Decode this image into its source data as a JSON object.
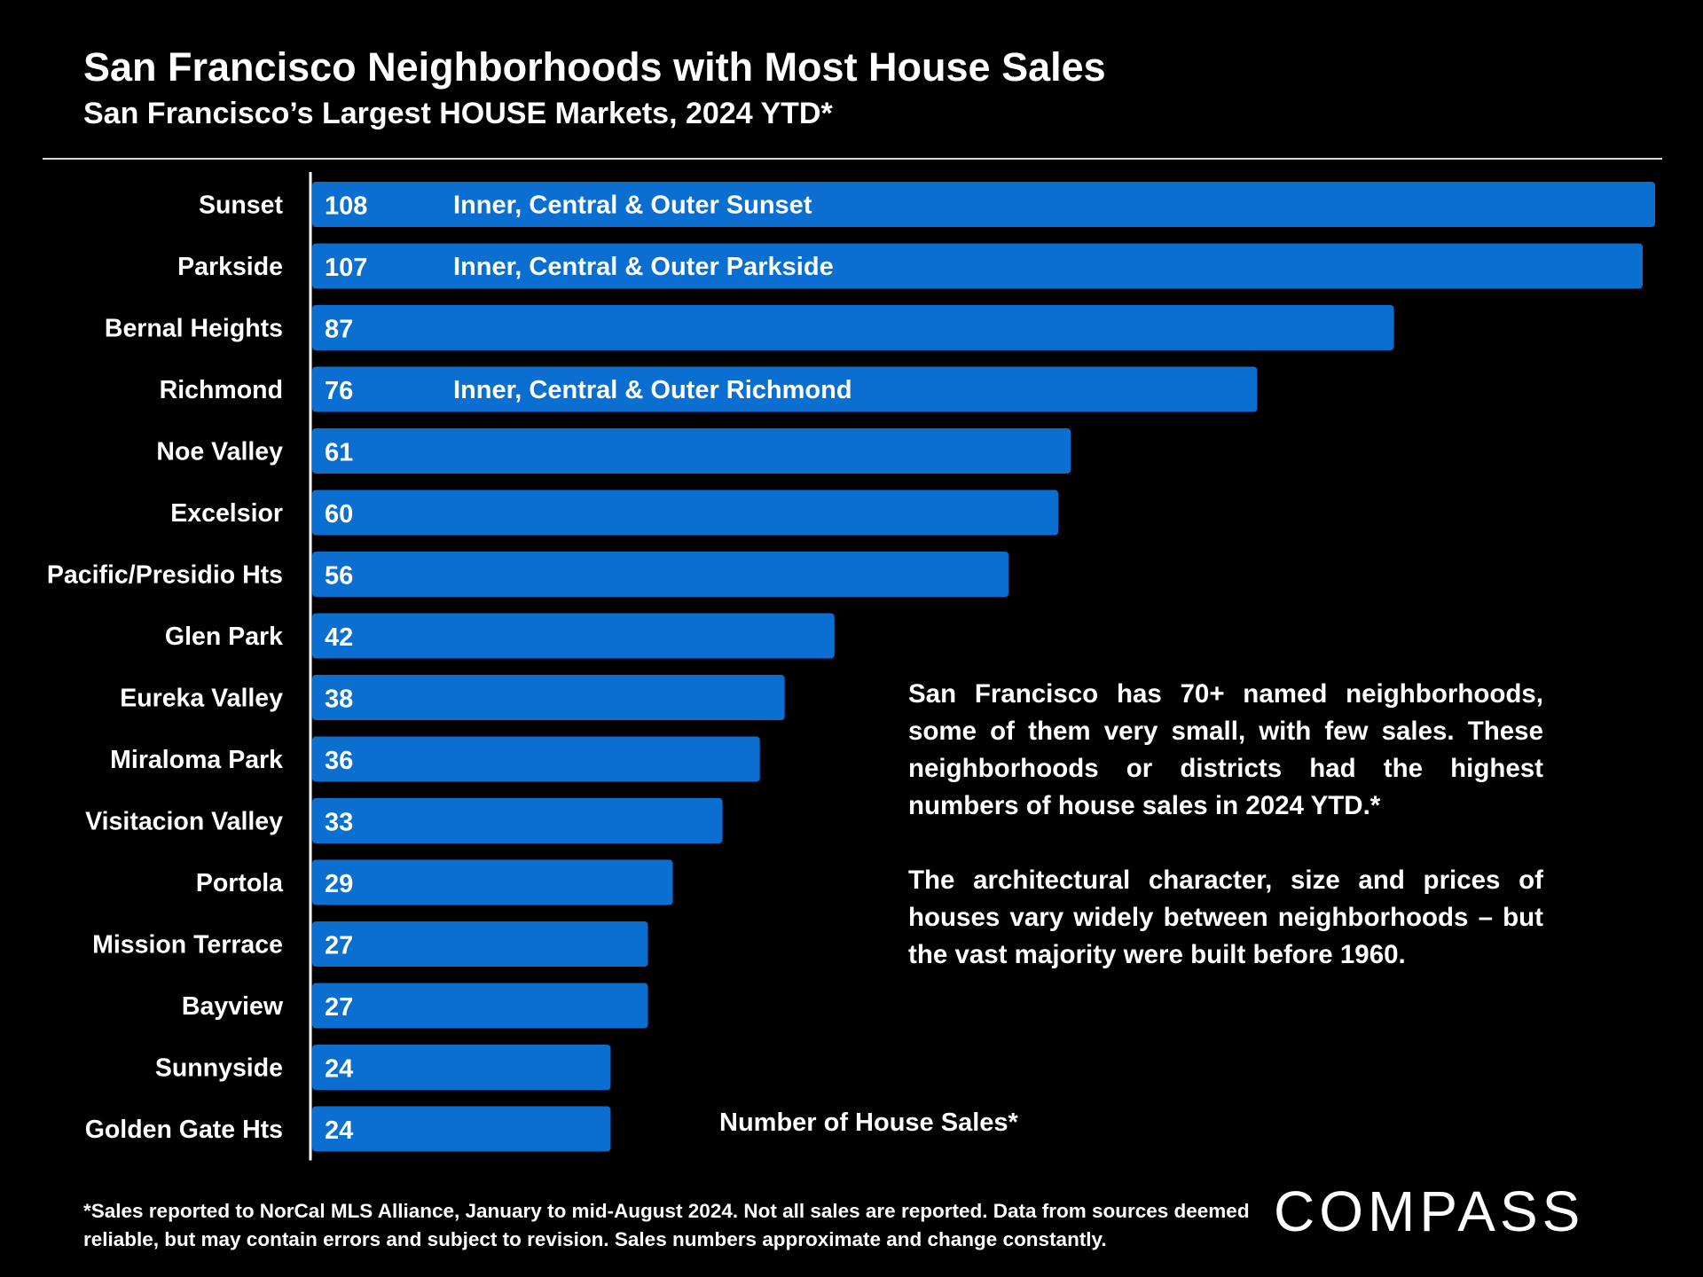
{
  "header": {
    "title": "San Francisco Neighborhoods with Most House Sales",
    "subtitle": "San Francisco’s Largest HOUSE Markets, 2024 YTD*"
  },
  "chart_data": {
    "type": "bar",
    "orientation": "horizontal",
    "categories": [
      "Sunset",
      "Parkside",
      "Bernal Heights",
      "Richmond",
      "Noe Valley",
      "Excelsior",
      "Pacific/Presidio Hts",
      "Glen Park",
      "Eureka Valley",
      "Miraloma Park",
      "Visitacion Valley",
      "Portola",
      "Mission Terrace",
      "Bayview",
      "Sunnyside",
      "Golden Gate Hts"
    ],
    "values": [
      108,
      107,
      87,
      76,
      61,
      60,
      56,
      42,
      38,
      36,
      33,
      29,
      27,
      27,
      24,
      24
    ],
    "bar_notes": [
      "Inner, Central & Outer Sunset",
      "Inner, Central & Outer Parkside",
      "",
      "Inner, Central & Outer Richmond",
      "",
      "",
      "",
      "",
      "",
      "",
      "",
      "",
      "",
      "",
      "",
      ""
    ],
    "xlabel": "Number of House Sales*",
    "ylabel": "",
    "xlim": [
      0,
      108
    ],
    "grid": false,
    "bar_color": "#0a6fd0",
    "data_labels": true
  },
  "annotation": {
    "paragraph1": "San Francisco has 70+ named neighborhoods, some of them very small, with few sales. These neighborhoods or districts had the highest numbers of house sales in 2024 YTD.*",
    "paragraph2": "The architectural character, size and prices of houses vary widely between neighborhoods – but the vast majority were built before 1960."
  },
  "footnote": "*Sales reported to NorCal MLS Alliance, January to mid-August 2024. Not all sales are reported. Data from sources deemed reliable, but may contain errors and subject to revision. Sales numbers approximate and change constantly.",
  "logo": {
    "text": "COMPASS"
  },
  "colors": {
    "background": "#000000",
    "bar": "#0a6fd0",
    "text": "#ffffff"
  }
}
